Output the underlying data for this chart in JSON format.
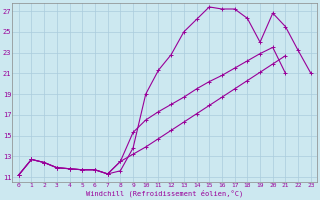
{
  "bg_color": "#cce8f0",
  "line_color": "#990099",
  "grid_color": "#aaccdd",
  "xlabel": "Windchill (Refroidissement éolien,°C)",
  "xticks": [
    0,
    1,
    2,
    3,
    4,
    5,
    6,
    7,
    8,
    9,
    10,
    11,
    12,
    13,
    14,
    15,
    16,
    17,
    18,
    19,
    20,
    21,
    22,
    23
  ],
  "yticks": [
    11,
    13,
    15,
    17,
    19,
    21,
    23,
    25,
    27
  ],
  "xlim": [
    -0.5,
    23.5
  ],
  "ylim": [
    10.5,
    27.8
  ],
  "curve1_x": [
    0,
    1,
    2,
    3,
    4,
    5,
    6,
    7,
    8,
    9,
    10,
    11,
    12,
    13,
    14,
    15,
    16,
    17,
    18,
    19,
    20,
    21,
    22,
    23
  ],
  "curve1_y": [
    11.2,
    12.7,
    12.4,
    11.9,
    11.8,
    11.7,
    11.7,
    11.3,
    11.6,
    13.8,
    19.0,
    21.3,
    22.8,
    25.0,
    26.2,
    27.4,
    27.2,
    27.2,
    26.3,
    24.0,
    26.8,
    25.5,
    23.2,
    21.0
  ],
  "curve2_x": [
    0,
    1,
    2,
    3,
    4,
    5,
    6,
    7,
    8,
    9,
    10,
    11,
    12,
    13,
    14,
    15,
    16,
    17,
    18,
    19,
    20,
    21,
    22,
    23
  ],
  "curve2_y": [
    11.2,
    12.7,
    12.4,
    11.9,
    11.8,
    11.7,
    11.7,
    11.3,
    12.5,
    15.3,
    16.5,
    17.3,
    18.0,
    18.7,
    19.5,
    20.2,
    20.8,
    21.5,
    22.2,
    22.9,
    23.5,
    21.0,
    null,
    null
  ],
  "curve3_x": [
    0,
    1,
    2,
    3,
    4,
    5,
    6,
    7,
    8,
    9,
    10,
    11,
    12,
    13,
    14,
    15,
    16,
    17,
    18,
    19,
    20,
    21,
    22,
    23
  ],
  "curve3_y": [
    11.2,
    12.7,
    12.4,
    11.9,
    11.8,
    11.7,
    11.7,
    11.3,
    12.5,
    13.2,
    13.9,
    14.7,
    15.5,
    16.3,
    17.1,
    17.9,
    18.7,
    19.5,
    20.3,
    21.1,
    21.9,
    22.7,
    null,
    null
  ],
  "marker_size": 3,
  "linewidth": 0.8,
  "tick_fontsize": 4.5,
  "xlabel_fontsize": 5.0
}
